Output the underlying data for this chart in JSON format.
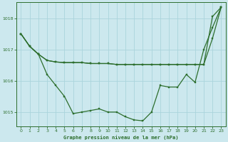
{
  "title": "Graphe pression niveau de la mer (hPa)",
  "background_color": "#cce8ee",
  "grid_color": "#aad4dc",
  "line_color": "#2d6e2d",
  "xlim": [
    -0.5,
    23.5
  ],
  "ylim": [
    1014.55,
    1018.5
  ],
  "yticks": [
    1015,
    1016,
    1017,
    1018
  ],
  "xticks": [
    0,
    1,
    2,
    3,
    4,
    5,
    6,
    7,
    8,
    9,
    10,
    11,
    12,
    13,
    14,
    15,
    16,
    17,
    18,
    19,
    20,
    21,
    22,
    23
  ],
  "s1": [
    1017.5,
    1017.1,
    1016.85,
    1016.2,
    1015.85,
    1015.5,
    1014.95,
    1015.0,
    1015.05,
    1015.1,
    1015.0,
    1015.0,
    1014.85,
    1014.75,
    1014.72,
    1015.0,
    1015.85,
    1015.8,
    1015.8,
    1016.2,
    1015.95,
    1017.0,
    1017.7,
    1018.35
  ],
  "s2": [
    1017.5,
    1017.1,
    1016.85,
    1016.65,
    1016.6,
    1016.58,
    1016.58,
    1016.58,
    1016.55,
    1016.55,
    1016.55,
    1016.52,
    1016.52,
    1016.52,
    1016.52,
    1016.52,
    1016.52,
    1016.52,
    1016.52,
    1016.52,
    1016.52,
    1016.52,
    1018.05,
    1018.35
  ],
  "s3": [
    1017.5,
    1017.1,
    1016.85,
    1016.65,
    1016.6,
    1016.58,
    1016.58,
    1016.58,
    1016.55,
    1016.55,
    1016.55,
    1016.52,
    1016.52,
    1016.52,
    1016.52,
    1016.52,
    1016.52,
    1016.52,
    1016.52,
    1016.52,
    1016.52,
    1016.52,
    1017.35,
    1018.35
  ]
}
